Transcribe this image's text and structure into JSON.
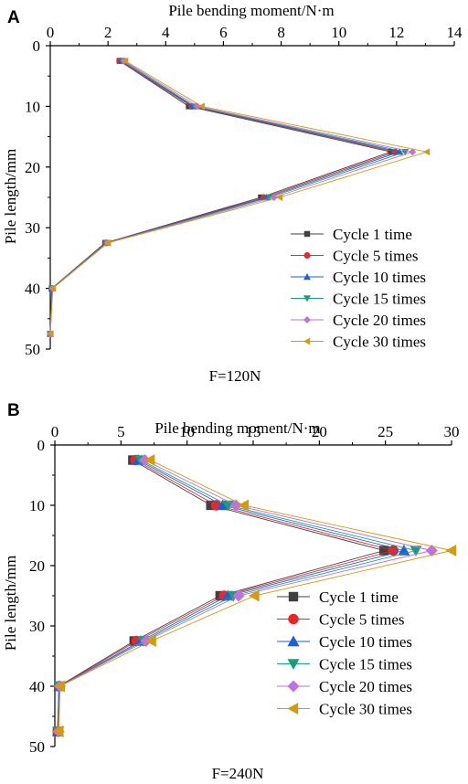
{
  "panels": [
    {
      "letter": "A",
      "caption": "F=120N"
    },
    {
      "letter": "B",
      "caption": "F=240N"
    }
  ],
  "series_style": [
    {
      "color": "#404040",
      "marker": "square"
    },
    {
      "color": "#e8282a",
      "marker": "circle"
    },
    {
      "color": "#1e5fd6",
      "marker": "triangle-up"
    },
    {
      "color": "#1a9e7a",
      "marker": "triangle-down"
    },
    {
      "color": "#c070e0",
      "marker": "diamond"
    },
    {
      "color": "#d49a10",
      "marker": "triangle-left"
    }
  ],
  "chart_data": [
    {
      "type": "line",
      "title": "",
      "xlabel": "Pile bending moment/N·m",
      "ylabel": "Pile length/mm",
      "xlim": [
        0,
        14
      ],
      "ylim": [
        0,
        50
      ],
      "y_inverted": true,
      "x_axis_position": "top",
      "x_ticks": [
        0,
        2,
        4,
        6,
        8,
        10,
        12,
        14
      ],
      "y_ticks": [
        0,
        10,
        20,
        30,
        40,
        50
      ],
      "legend_position": "bottom-right",
      "y": [
        2.5,
        10,
        17.5,
        25,
        32.5,
        40,
        47.5
      ],
      "series": [
        {
          "name": "Cycle 1 time",
          "x": [
            2.4,
            4.8,
            11.8,
            7.3,
            1.9,
            0.05,
            0
          ]
        },
        {
          "name": "Cycle 5 times",
          "x": [
            2.4,
            4.9,
            11.95,
            7.4,
            1.92,
            0.06,
            0
          ]
        },
        {
          "name": "Cycle 10 times",
          "x": [
            2.45,
            4.95,
            12.1,
            7.5,
            1.94,
            0.06,
            0
          ]
        },
        {
          "name": "Cycle 15 times",
          "x": [
            2.5,
            5.0,
            12.3,
            7.6,
            1.96,
            0.07,
            0
          ]
        },
        {
          "name": "Cycle 20 times",
          "x": [
            2.55,
            5.1,
            12.55,
            7.75,
            1.98,
            0.08,
            0
          ]
        },
        {
          "name": "Cycle 30 times",
          "x": [
            2.6,
            5.25,
            13.05,
            7.95,
            2.0,
            0.09,
            0
          ]
        }
      ]
    },
    {
      "type": "line",
      "title": "",
      "xlabel": "Pile bending moment/N·m",
      "ylabel": "Pile length/mm",
      "xlim": [
        0,
        30
      ],
      "ylim": [
        0,
        50
      ],
      "y_inverted": true,
      "x_axis_position": "top",
      "x_ticks": [
        0,
        5,
        10,
        15,
        20,
        25,
        30
      ],
      "y_ticks": [
        0,
        10,
        20,
        30,
        40,
        50
      ],
      "legend_position": "bottom-right",
      "y": [
        2.5,
        10,
        17.5,
        25,
        32.5,
        40,
        47.5
      ],
      "series": [
        {
          "name": "Cycle 1 time",
          "x": [
            5.9,
            11.8,
            24.9,
            12.5,
            6.0,
            0.3,
            0.2
          ]
        },
        {
          "name": "Cycle 5 times",
          "x": [
            6.1,
            12.2,
            25.6,
            12.8,
            6.2,
            0.32,
            0.22
          ]
        },
        {
          "name": "Cycle 10 times",
          "x": [
            6.3,
            12.7,
            26.4,
            13.1,
            6.5,
            0.34,
            0.24
          ]
        },
        {
          "name": "Cycle 15 times",
          "x": [
            6.5,
            13.1,
            27.3,
            13.5,
            6.7,
            0.36,
            0.26
          ]
        },
        {
          "name": "Cycle 20 times",
          "x": [
            6.8,
            13.7,
            28.5,
            13.9,
            6.9,
            0.38,
            0.28
          ]
        },
        {
          "name": "Cycle 30 times",
          "x": [
            7.2,
            14.3,
            30.0,
            15.1,
            7.3,
            0.4,
            0.3
          ]
        }
      ]
    }
  ]
}
